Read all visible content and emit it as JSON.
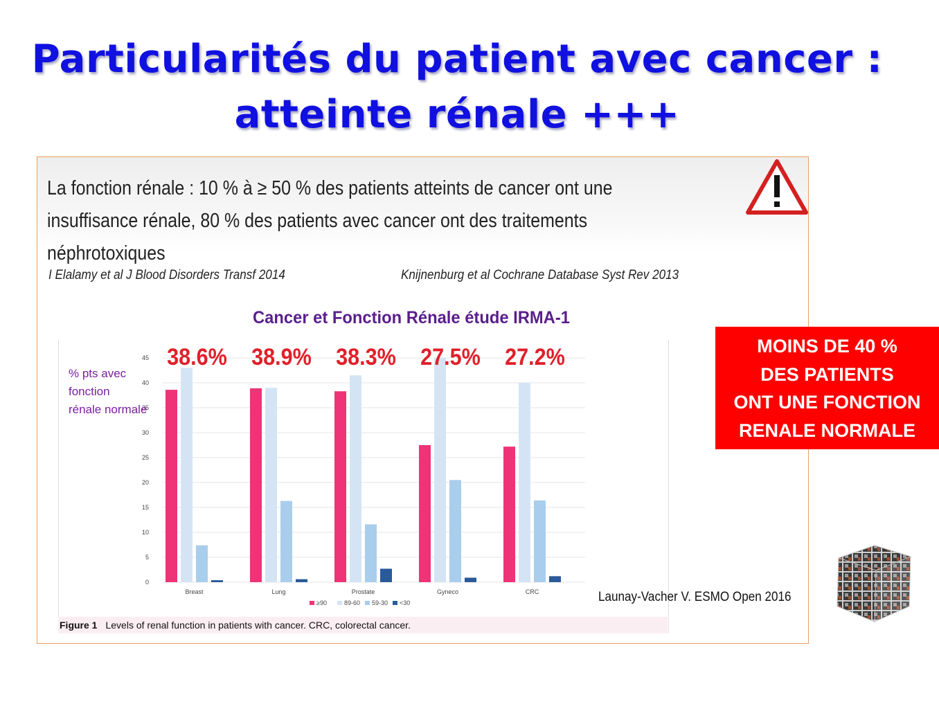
{
  "slide": {
    "title_line1": "Particularités du patient avec cancer :",
    "title_line2": "atteinte rénale +++",
    "body_line1": "La fonction rénale : 10 % à ≥ 50 % des patients atteints de cancer ont une",
    "body_line2": "insuffisance rénale, 80 % des patients avec cancer ont des traitements",
    "body_line3": "néphrotoxiques",
    "citation_left": "I Elalamy et al J Blood Disorders Transf 2014",
    "citation_right": "Knijnenburg et al Cochrane Database Syst Rev 2013",
    "source": "Launay-Vacher V. ESMO Open 2016",
    "callout": [
      "MOINS DE 40 %",
      "DES PATIENTS",
      "ONT UNE FONCTION",
      "RENALE NORMALE"
    ],
    "warning_icon": "warning-triangle-icon",
    "cube_image": "image-cube-logo"
  },
  "chart_data": {
    "type": "bar",
    "title": "Cancer et Fonction Rénale étude IRMA-1",
    "ylabel": "% pts avec fonction rénale normale",
    "ylabel_lines": [
      "% pts avec",
      "fonction",
      "rénale normale"
    ],
    "ylim": [
      0,
      45
    ],
    "yticks": [
      0,
      5,
      10,
      15,
      20,
      25,
      30,
      35,
      40,
      45
    ],
    "categories": [
      "Breast",
      "Lung",
      "Prostate",
      "Gyneco",
      "CRC"
    ],
    "series": [
      {
        "name": "≥90",
        "color": "#ee3377",
        "values": [
          38.6,
          38.9,
          38.3,
          27.5,
          27.2
        ]
      },
      {
        "name": "89-60",
        "color": "#d4e4f4",
        "values": [
          43,
          39,
          41.5,
          45,
          40
        ]
      },
      {
        "name": "59-30",
        "color": "#a9cdec",
        "values": [
          7.4,
          16.3,
          11.6,
          20.5,
          16.4
        ]
      },
      {
        "name": "<30",
        "color": "#2a5a98",
        "values": [
          0.4,
          0.6,
          2.7,
          0.9,
          1.2
        ]
      }
    ],
    "highlight_labels": [
      "38.6%",
      "38.9%",
      "38.3%",
      "27.5%",
      "27.2%"
    ],
    "figure_caption_label": "Figure 1",
    "figure_caption": "Levels of renal function in patients with cancer. CRC, colorectal cancer.",
    "grid": true,
    "legend": "bottom"
  },
  "colors": {
    "title": "#1010e0",
    "chart_title": "#5a1e8c",
    "highlight": "#e0202a",
    "ylabel": "#7a1fa0",
    "callout_bg": "#ff0000"
  }
}
